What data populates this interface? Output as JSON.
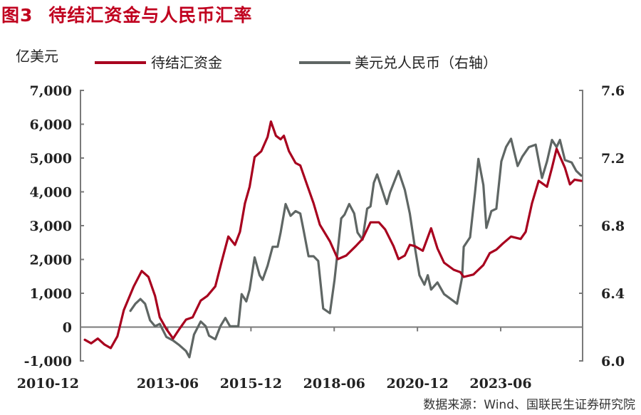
{
  "title": {
    "figure_no": "图3",
    "text": "待结汇资金与人民币汇率"
  },
  "source": "数据来源：Wind、国联民生证券研究院",
  "colors": {
    "title": "#c0001f",
    "series_red": "#a8001e",
    "series_gray": "#5f6664",
    "axis": "#7a7a7a"
  },
  "chart_data": {
    "type": "line",
    "title": "待结汇资金与人民币汇率",
    "ylabel_left": "亿美元",
    "ylim_left": [
      -1000,
      7000
    ],
    "ylim_right": [
      6.0,
      7.6
    ],
    "xlim": [
      2010.8,
      2025.88
    ],
    "left_ticks": [
      "7,000",
      "6,000",
      "5,000",
      "4,000",
      "3,000",
      "2,000",
      "1,000",
      "0",
      "-1,000"
    ],
    "left_tick_values": [
      7000,
      6000,
      5000,
      4000,
      3000,
      2000,
      1000,
      0,
      -1000
    ],
    "right_ticks": [
      "7.6",
      "7.2",
      "6.8",
      "6.4",
      "6.0"
    ],
    "right_tick_values": [
      7.6,
      7.2,
      6.8,
      6.4,
      6.0
    ],
    "x_ticks": [
      "2010-12",
      "2013-06",
      "2015-12",
      "2018-06",
      "2020-12",
      "2023-06"
    ],
    "x_tick_values": [
      2010.92,
      2013.42,
      2015.92,
      2018.42,
      2020.92,
      2023.42
    ],
    "grid": false,
    "legend": {
      "placement": "top",
      "entries": [
        "待结汇资金",
        "美元兑人民币（右轴）"
      ]
    },
    "series": [
      {
        "name": "待结汇资金",
        "axis": "left",
        "x": [
          2010.93,
          2011.12,
          2011.32,
          2011.52,
          2011.71,
          2011.91,
          2012.1,
          2012.4,
          2012.64,
          2012.84,
          2013.04,
          2013.18,
          2013.38,
          2013.58,
          2013.77,
          2013.97,
          2014.17,
          2014.41,
          2014.61,
          2014.85,
          2015.05,
          2015.24,
          2015.44,
          2015.59,
          2015.74,
          2015.88,
          2016.03,
          2016.23,
          2016.42,
          2016.52,
          2016.67,
          2016.81,
          2016.91,
          2017.06,
          2017.26,
          2017.4,
          2017.6,
          2017.8,
          2017.99,
          2018.29,
          2018.53,
          2018.78,
          2019.07,
          2019.27,
          2019.51,
          2019.76,
          2019.95,
          2020.2,
          2020.35,
          2020.54,
          2020.69,
          2020.84,
          2021.08,
          2021.33,
          2021.52,
          2021.72,
          2022.01,
          2022.21,
          2022.31,
          2022.6,
          2022.9,
          2023.09,
          2023.29,
          2023.48,
          2023.73,
          2024.02,
          2024.17,
          2024.36,
          2024.56,
          2024.81,
          2024.96,
          2025.1,
          2025.35,
          2025.5,
          2025.64,
          2025.84
        ],
        "values": [
          -375,
          -481,
          -340,
          -516,
          -621,
          -270,
          501,
          1204,
          1659,
          1484,
          922,
          291,
          -59,
          -340,
          -59,
          221,
          291,
          783,
          922,
          1204,
          1975,
          2677,
          2431,
          2817,
          3659,
          4151,
          5027,
          5203,
          5624,
          6080,
          5658,
          5553,
          5658,
          5203,
          4852,
          4782,
          4221,
          3659,
          3027,
          2537,
          2010,
          2116,
          2396,
          2606,
          3098,
          3098,
          2888,
          2396,
          2010,
          2116,
          2431,
          2396,
          2256,
          2922,
          2326,
          1905,
          1694,
          1624,
          1484,
          1554,
          1835,
          2185,
          2291,
          2467,
          2677,
          2606,
          2817,
          3659,
          4326,
          4151,
          4711,
          5273,
          4711,
          4221,
          4361,
          4326
        ]
      },
      {
        "name": "美元兑人民币（右轴）",
        "axis": "right",
        "x": [
          2012.3,
          2012.45,
          2012.6,
          2012.74,
          2012.89,
          2013.04,
          2013.18,
          2013.38,
          2013.58,
          2013.77,
          2013.97,
          2014.07,
          2014.21,
          2014.41,
          2014.56,
          2014.66,
          2014.85,
          2015.0,
          2015.15,
          2015.29,
          2015.54,
          2015.64,
          2015.78,
          2015.88,
          2016.03,
          2016.18,
          2016.27,
          2016.42,
          2016.57,
          2016.72,
          2016.81,
          2016.96,
          2017.11,
          2017.26,
          2017.4,
          2017.5,
          2017.65,
          2017.8,
          2017.94,
          2018.09,
          2018.29,
          2018.43,
          2018.63,
          2018.73,
          2018.87,
          2019.02,
          2019.12,
          2019.27,
          2019.41,
          2019.51,
          2019.61,
          2019.71,
          2019.86,
          2020.0,
          2020.1,
          2020.35,
          2020.54,
          2020.69,
          2020.84,
          2020.98,
          2021.13,
          2021.23,
          2021.33,
          2021.52,
          2021.72,
          2021.92,
          2022.11,
          2022.26,
          2022.31,
          2022.5,
          2022.65,
          2022.75,
          2022.9,
          2022.99,
          2023.14,
          2023.29,
          2023.44,
          2023.58,
          2023.73,
          2023.93,
          2024.07,
          2024.27,
          2024.47,
          2024.66,
          2024.81,
          2024.96,
          2025.1,
          2025.2,
          2025.35,
          2025.55,
          2025.69,
          2025.84
        ],
        "values": [
          6.296,
          6.338,
          6.366,
          6.338,
          6.24,
          6.205,
          6.219,
          6.142,
          6.121,
          6.093,
          6.058,
          6.022,
          6.156,
          6.233,
          6.205,
          6.149,
          6.128,
          6.205,
          6.254,
          6.205,
          6.205,
          6.395,
          6.352,
          6.422,
          6.612,
          6.507,
          6.479,
          6.563,
          6.675,
          6.675,
          6.759,
          6.928,
          6.858,
          6.886,
          6.872,
          6.774,
          6.619,
          6.619,
          6.591,
          6.31,
          6.282,
          6.479,
          6.843,
          6.865,
          6.928,
          6.872,
          6.759,
          6.717,
          6.9,
          6.914,
          7.054,
          7.103,
          7.012,
          6.928,
          6.998,
          7.124,
          7.012,
          6.872,
          6.675,
          6.507,
          6.451,
          6.507,
          6.422,
          6.464,
          6.395,
          6.366,
          6.338,
          6.493,
          6.675,
          6.731,
          6.998,
          7.195,
          7.04,
          6.787,
          6.886,
          6.9,
          7.18,
          7.265,
          7.314,
          7.153,
          7.209,
          7.265,
          7.279,
          7.082,
          7.18,
          7.307,
          7.265,
          7.307,
          7.188,
          7.174,
          7.124,
          7.096
        ]
      }
    ]
  }
}
